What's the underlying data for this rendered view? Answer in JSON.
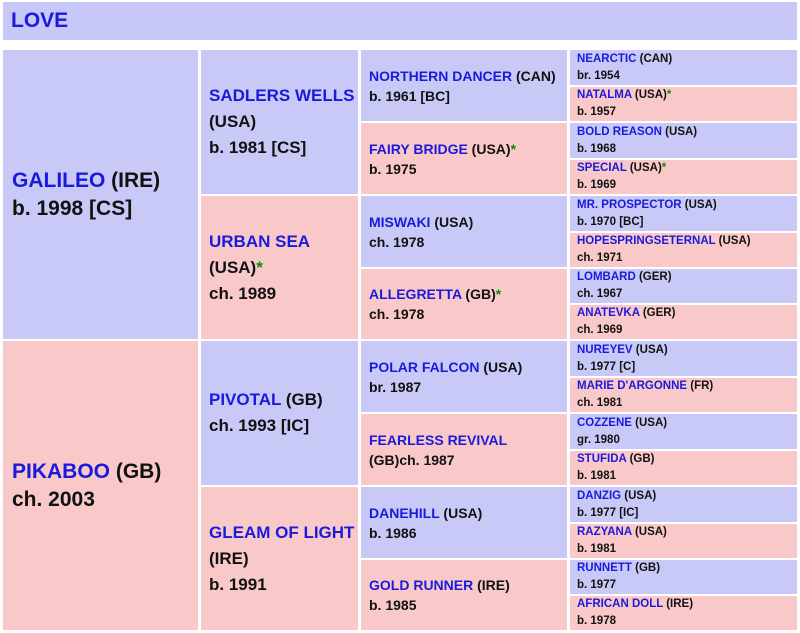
{
  "title": "LOVE",
  "g1": [
    {
      "name": "GALILEO",
      "country": " (IRE)",
      "star": "",
      "info": "b. 1998 [CS]"
    },
    {
      "name": "PIKABOO",
      "country": " (GB)",
      "star": "",
      "info": "ch. 2003"
    }
  ],
  "g2": [
    {
      "name": "SADLERS WELLS",
      "country": " (USA)",
      "star": "",
      "info": "b. 1981 [CS]"
    },
    {
      "name": "URBAN SEA",
      "country": " (USA)",
      "star": "*",
      "info": "ch. 1989"
    },
    {
      "name": "PIVOTAL",
      "country": " (GB)",
      "star": "",
      "info": "ch. 1993 [IC]"
    },
    {
      "name": "GLEAM OF LIGHT",
      "country": " (IRE)",
      "star": "",
      "info": "b. 1991"
    }
  ],
  "g3": [
    {
      "name": "NORTHERN DANCER",
      "country": " (CAN)",
      "star": "",
      "info": "b. 1961 [BC]"
    },
    {
      "name": "FAIRY BRIDGE",
      "country": " (USA)",
      "star": "*",
      "info": "b. 1975"
    },
    {
      "name": "MISWAKI",
      "country": " (USA)",
      "star": "",
      "info": "ch. 1978"
    },
    {
      "name": "ALLEGRETTA",
      "country": " (GB)",
      "star": "*",
      "info": "ch. 1978"
    },
    {
      "name": "POLAR FALCON",
      "country": " (USA)",
      "star": "",
      "info": "br. 1987"
    },
    {
      "name": "FEARLESS REVIVAL",
      "country": " (GB)",
      "star": "",
      "info": "ch. 1987"
    },
    {
      "name": "DANEHILL",
      "country": " (USA)",
      "star": "",
      "info": "b. 1986"
    },
    {
      "name": "GOLD RUNNER",
      "country": " (IRE)",
      "star": "",
      "info": "b. 1985"
    }
  ],
  "g4": [
    {
      "name": "NEARCTIC",
      "country": " (CAN)",
      "star": "",
      "info": "br. 1954"
    },
    {
      "name": "NATALMA",
      "country": " (USA)",
      "star": "*",
      "info": "b. 1957"
    },
    {
      "name": "BOLD REASON",
      "country": " (USA)",
      "star": "",
      "info": "b. 1968"
    },
    {
      "name": "SPECIAL",
      "country": " (USA)",
      "star": "*",
      "info": "b. 1969"
    },
    {
      "name": "MR. PROSPECTOR",
      "country": " (USA)",
      "star": "",
      "info": "b. 1970 [BC]"
    },
    {
      "name": "HOPESPRINGSETERNAL",
      "country": " (USA)",
      "star": "",
      "info": "ch. 1971"
    },
    {
      "name": "LOMBARD",
      "country": " (GER)",
      "star": "",
      "info": "ch. 1967"
    },
    {
      "name": "ANATEVKA",
      "country": " (GER)",
      "star": "",
      "info": "ch. 1969"
    },
    {
      "name": "NUREYEV",
      "country": " (USA)",
      "star": "",
      "info": "b. 1977 [C]"
    },
    {
      "name": "MARIE D'ARGONNE",
      "country": " (FR)",
      "star": "",
      "info": "ch. 1981"
    },
    {
      "name": "COZZENE",
      "country": " (USA)",
      "star": "",
      "info": "gr. 1980"
    },
    {
      "name": "STUFIDA",
      "country": " (GB)",
      "star": "",
      "info": "b. 1981"
    },
    {
      "name": "DANZIG",
      "country": " (USA)",
      "star": "",
      "info": "b. 1977 [IC]"
    },
    {
      "name": "RAZYANA",
      "country": " (USA)",
      "star": "",
      "info": "b. 1981"
    },
    {
      "name": "RUNNETT",
      "country": " (GB)",
      "star": "",
      "info": "b. 1977"
    },
    {
      "name": "AFRICAN DOLL",
      "country": " (IRE)",
      "star": "",
      "info": "b. 1978"
    }
  ]
}
